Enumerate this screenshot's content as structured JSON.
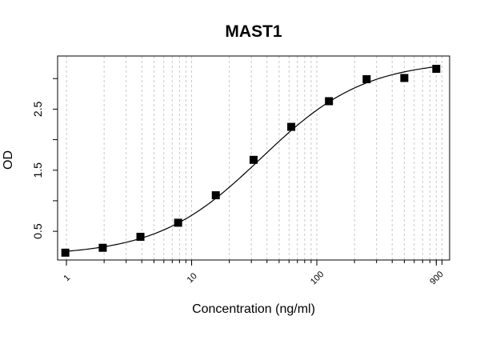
{
  "chart_data": {
    "type": "scatter",
    "title": "MAST1",
    "xlabel": "Concentration (ng/ml)",
    "ylabel": "OD",
    "xscale": "log",
    "xlim": [
      0.85,
      1150
    ],
    "ylim": [
      0.03,
      3.37
    ],
    "grid": true,
    "x_ticks": [
      1,
      10,
      100,
      900
    ],
    "x_tick_labels": [
      "1",
      "10",
      "100",
      "900"
    ],
    "y_ticks": [
      0.5,
      1.5,
      2.5
    ],
    "y_tick_labels": [
      "0.5",
      "1.5",
      "2.5"
    ],
    "series": [
      {
        "x": [
          0.98,
          1.95,
          3.9,
          7.8,
          15.6,
          31.25,
          62.5,
          125,
          250,
          500,
          900
        ],
        "y": [
          0.15,
          0.23,
          0.41,
          0.64,
          1.09,
          1.67,
          2.21,
          2.63,
          2.99,
          3.01,
          3.16
        ]
      }
    ],
    "fit_curve": {
      "model": "4PL",
      "bottom": 0.1,
      "top": 3.3,
      "ec50": 36,
      "hill": 1.05
    }
  }
}
